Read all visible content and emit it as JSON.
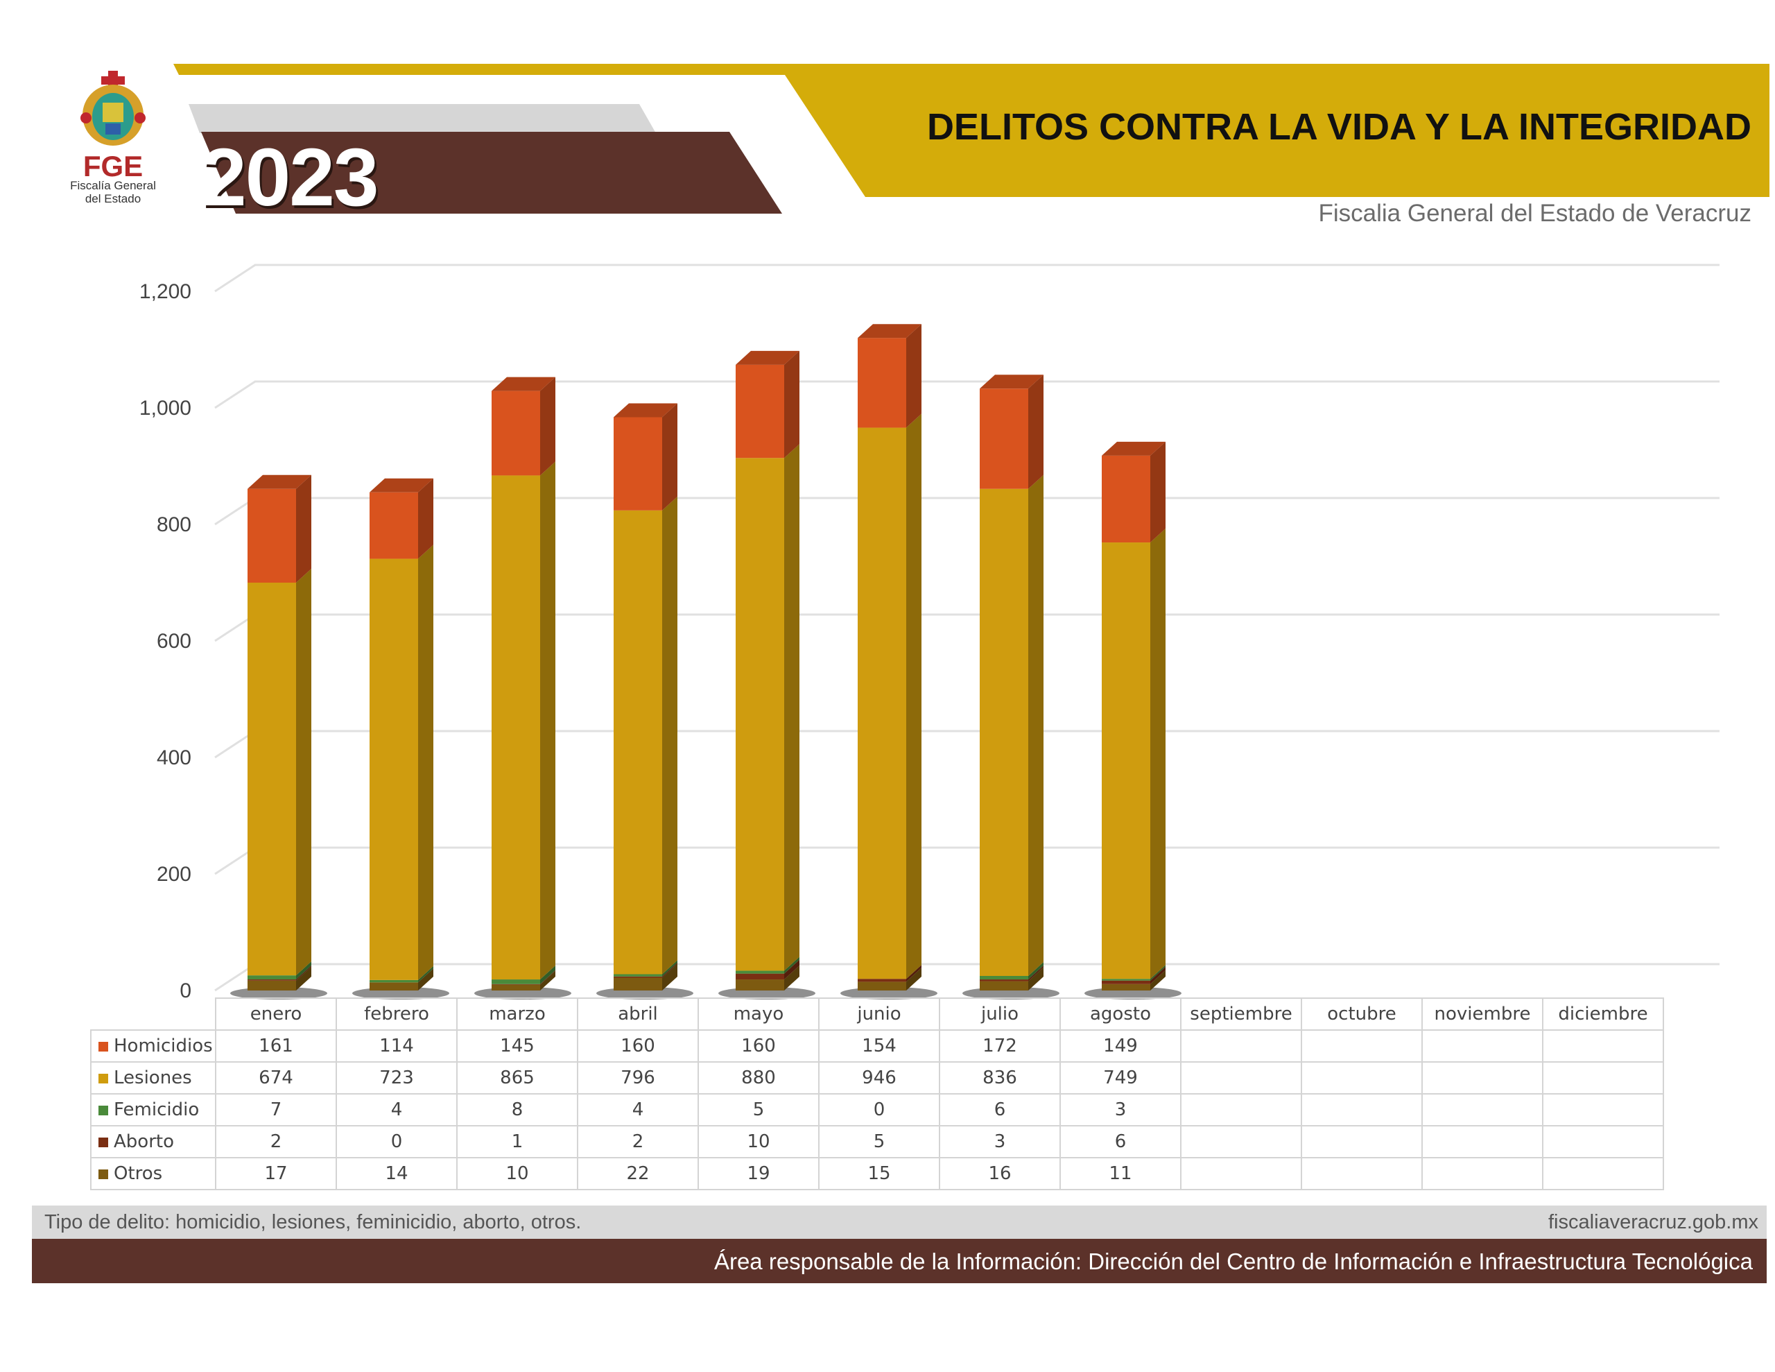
{
  "header": {
    "year": "2023",
    "title": "DELITOS CONTRA LA VIDA Y LA INTEGRIDAD",
    "subtitle": "Fiscalia General del Estado de Veracruz",
    "logo_acronym": "FGE",
    "logo_sub_line1": "Fiscalía General",
    "logo_sub_line2": "del Estado"
  },
  "colors": {
    "header_gold": "#d4ac0a",
    "header_brown": "#5c322a",
    "header_gray": "#d6d6d6",
    "homicidios": "#d9531e",
    "lesiones": "#cf9c0f",
    "femicidio": "#4a8a3a",
    "aborto": "#7a2e12",
    "otros": "#7d5a10"
  },
  "chart_data": {
    "type": "bar",
    "stacked": true,
    "three_d": true,
    "categories": [
      "enero",
      "febrero",
      "marzo",
      "abril",
      "mayo",
      "junio",
      "julio",
      "agosto",
      "septiembre",
      "octubre",
      "noviembre",
      "diciembre"
    ],
    "series": [
      {
        "name": "Homicidios",
        "values": [
          161,
          114,
          145,
          160,
          160,
          154,
          172,
          149,
          null,
          null,
          null,
          null
        ]
      },
      {
        "name": "Lesiones",
        "values": [
          674,
          723,
          865,
          796,
          880,
          946,
          836,
          749,
          null,
          null,
          null,
          null
        ]
      },
      {
        "name": "Femicidio",
        "values": [
          7,
          4,
          8,
          4,
          5,
          0,
          6,
          3,
          null,
          null,
          null,
          null
        ]
      },
      {
        "name": "Aborto",
        "values": [
          2,
          0,
          1,
          2,
          10,
          5,
          3,
          6,
          null,
          null,
          null,
          null
        ]
      },
      {
        "name": "Otros",
        "values": [
          17,
          14,
          10,
          22,
          19,
          15,
          16,
          11,
          null,
          null,
          null,
          null
        ]
      }
    ],
    "ylim": [
      0,
      1200
    ],
    "yticks": [
      0,
      200,
      400,
      600,
      800,
      1000,
      1200
    ],
    "ytick_labels": [
      "0",
      "200",
      "400",
      "600",
      "800",
      "1,000",
      "1,200"
    ],
    "grid": true,
    "legend": "data-table"
  },
  "footer": {
    "note": "Tipo de delito: homicidio, lesiones, feminicidio, aborto, otros.",
    "url": "fiscaliaveracruz.gob.mx",
    "area": "Área responsable de la Información: Dirección del Centro de Información e Infraestructura Tecnológica"
  }
}
